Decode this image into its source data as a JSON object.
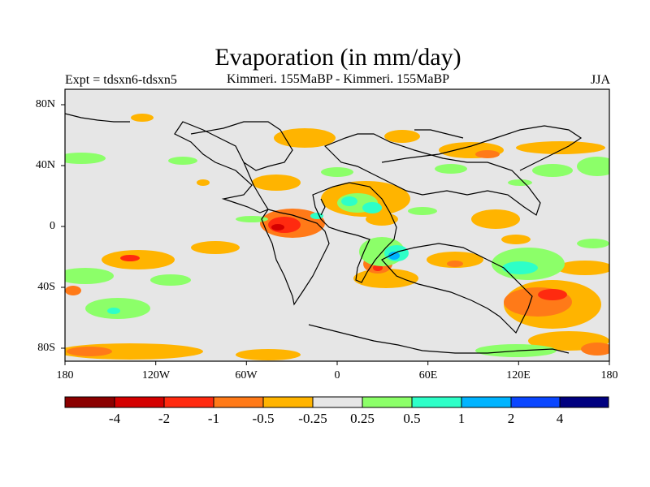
{
  "header": {
    "title": "Evaporation (in mm/day)",
    "left_label": "Expt = tdsxn6-tdsxn5",
    "center_label": "Kimmeri. 155MaBP - Kimmeri. 155MaBP",
    "right_label": "JJA"
  },
  "map": {
    "y_tick_labels": [
      "80N",
      "40N",
      "0",
      "40S",
      "80S"
    ],
    "x_tick_labels": [
      "180",
      "120W",
      "60W",
      "0",
      "60E",
      "120E",
      "180"
    ],
    "background_color": "#e6e6e6",
    "land_outline_color": "#000000"
  },
  "colorbar": {
    "colors": [
      "#8b0000",
      "#d40000",
      "#ff2a0f",
      "#ff7a18",
      "#ffb400",
      "#e6e6e6",
      "#8cff69",
      "#2effc8",
      "#00b4ff",
      "#0a46ff",
      "#000080"
    ],
    "labels": [
      "-4",
      "-2",
      "-1",
      "-0.5",
      "-0.25",
      "0.25",
      "0.5",
      "1",
      "2",
      "4"
    ]
  }
}
